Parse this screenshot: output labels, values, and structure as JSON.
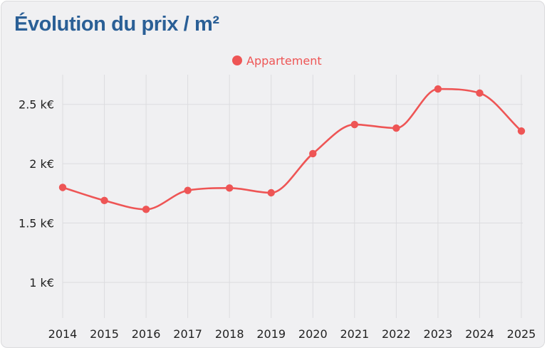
{
  "title": "Évolution du prix / m²",
  "colors": {
    "series": "#ee5555",
    "title": "#2a5f96",
    "grid": "#dcdcdf",
    "axis_text": "#222222",
    "background": "#f0f0f2"
  },
  "chart_data": {
    "type": "line",
    "title": "Évolution du prix / m²",
    "xlabel": "",
    "ylabel": "",
    "categories": [
      "2014",
      "2015",
      "2016",
      "2017",
      "2018",
      "2019",
      "2020",
      "2021",
      "2022",
      "2023",
      "2024",
      "2025"
    ],
    "series": [
      {
        "name": "Appartement",
        "values": [
          1800,
          1690,
          1615,
          1775,
          1795,
          1755,
          2085,
          2330,
          2300,
          2630,
          2595,
          2275
        ]
      }
    ],
    "yticks": [
      1000,
      1500,
      2000,
      2500
    ],
    "ytick_labels": [
      "1 k€",
      "1.5 k€",
      "2 k€",
      "2.5 k€"
    ],
    "ylim": [
      700,
      2750
    ],
    "grid": true,
    "legend_position": "top-center",
    "smooth": true
  }
}
